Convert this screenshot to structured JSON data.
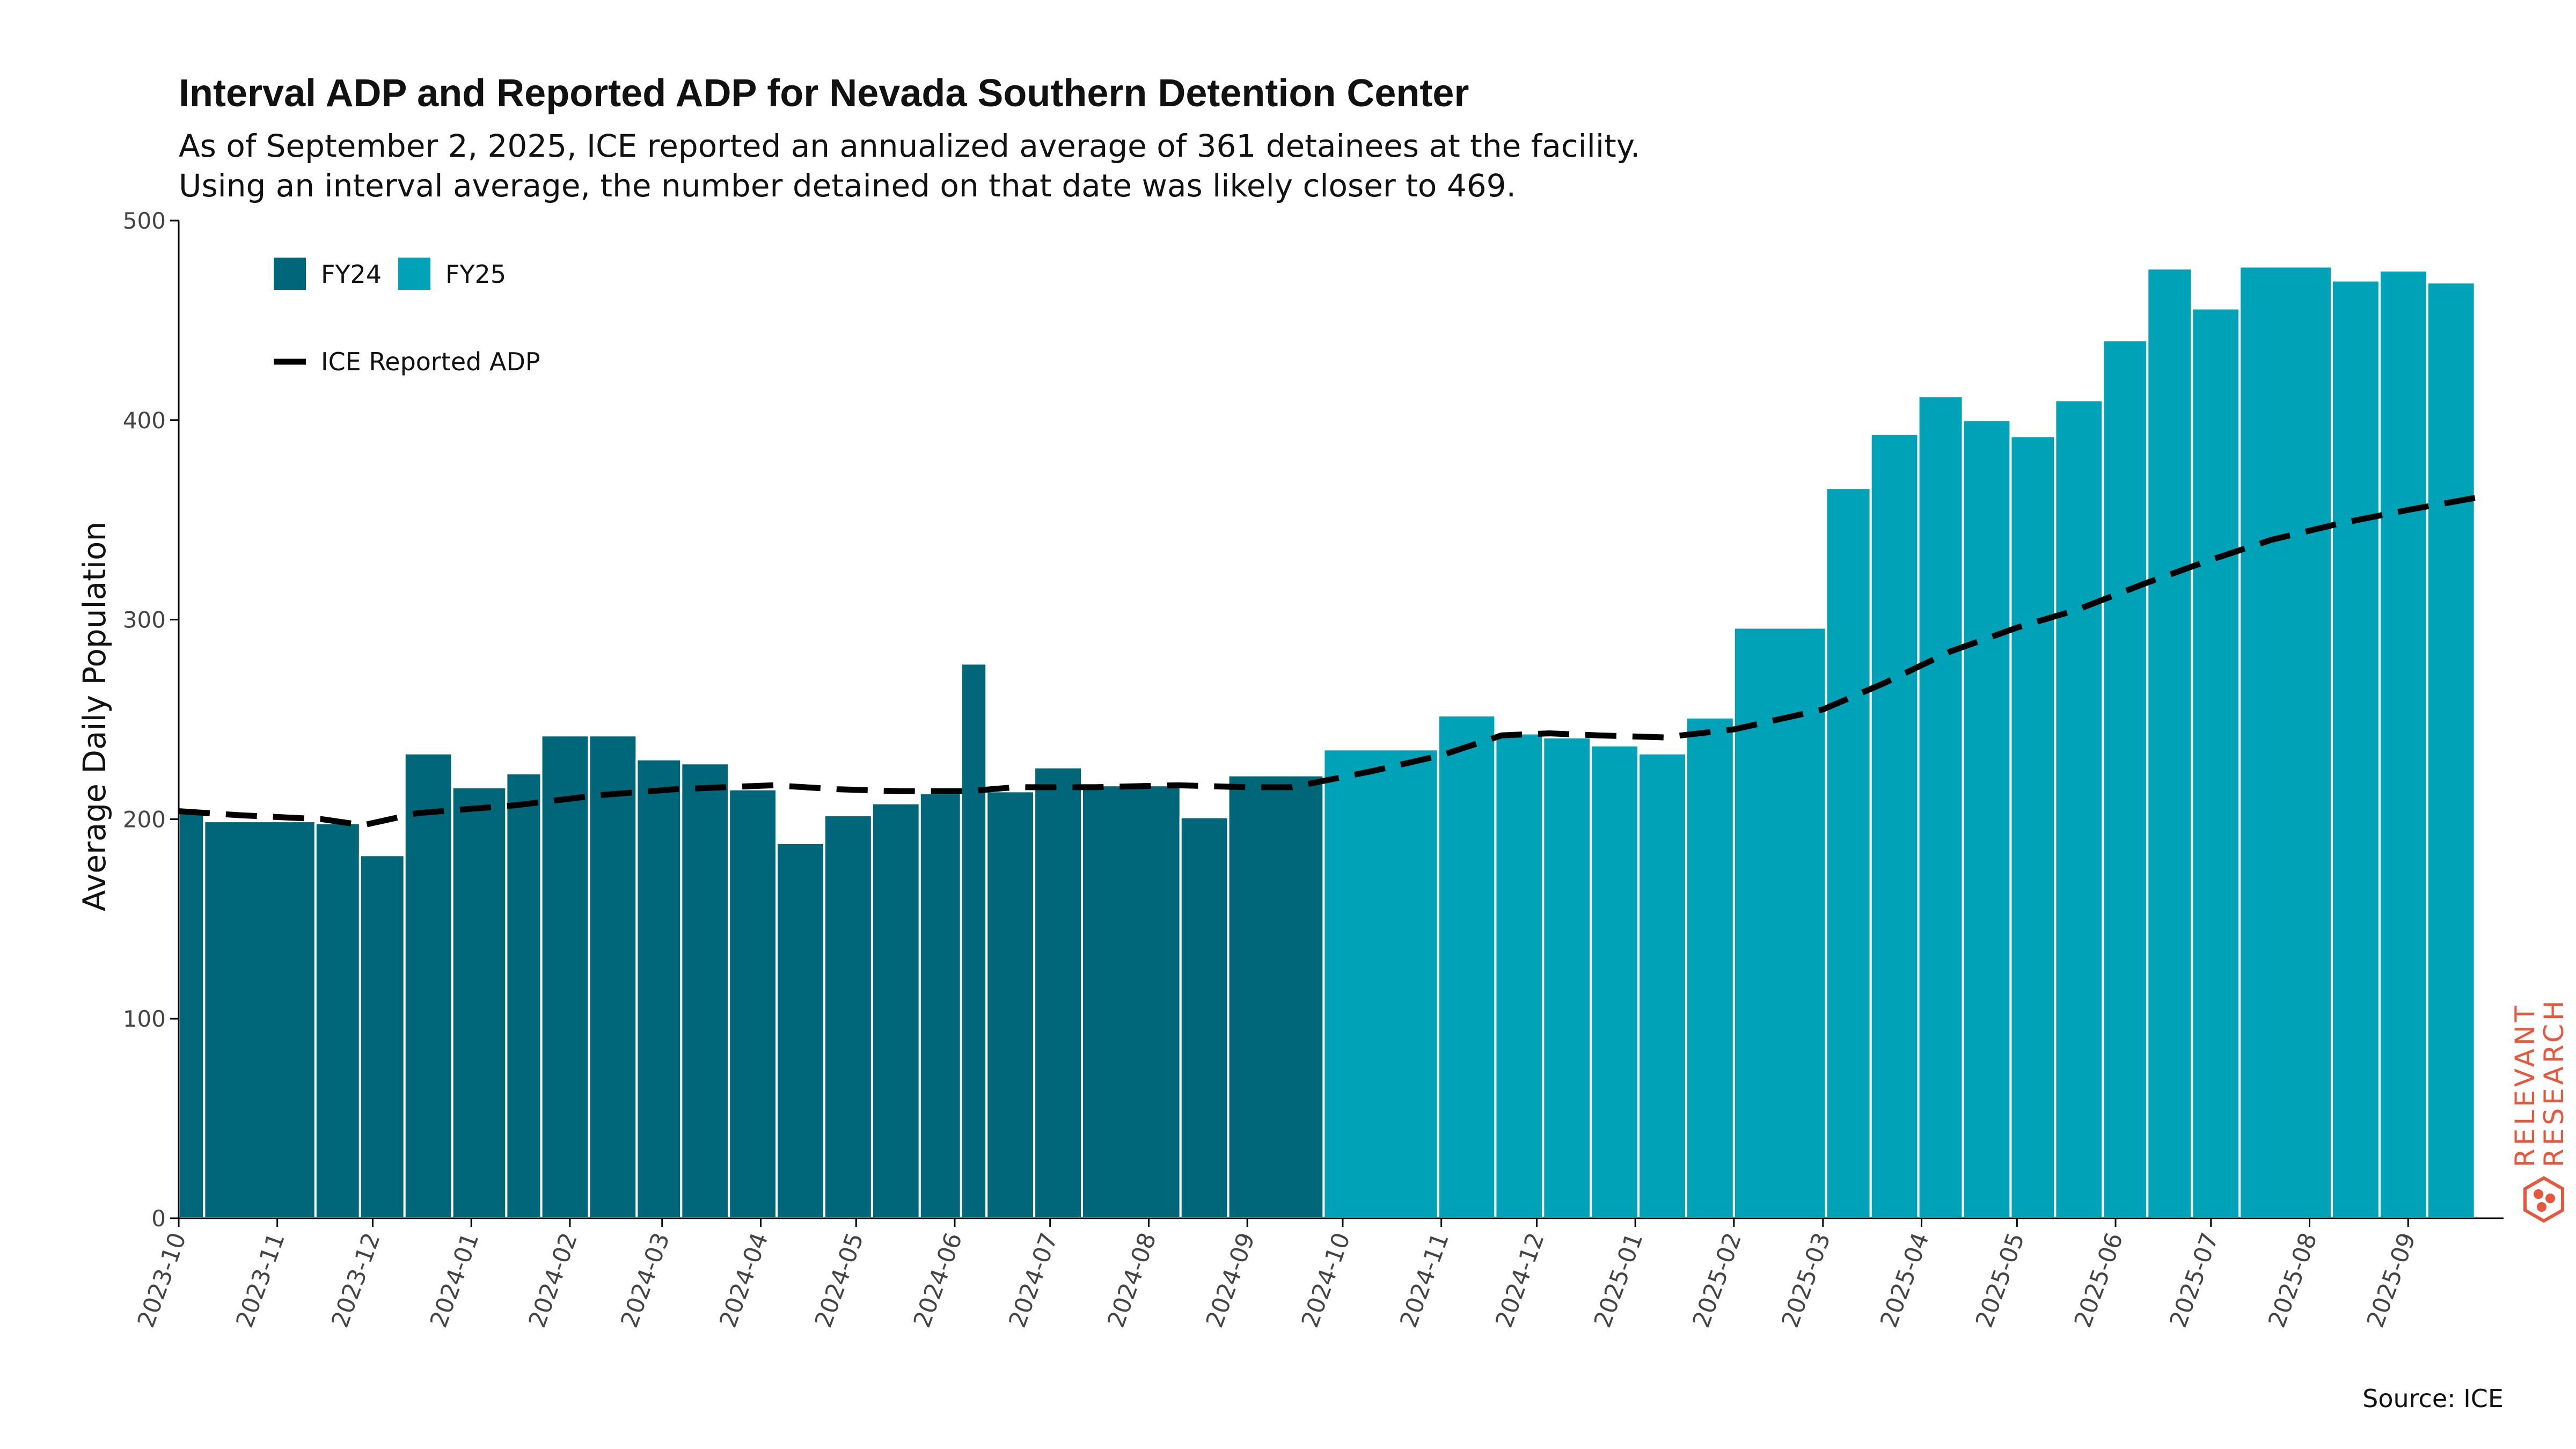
{
  "colors": {
    "fy24": "#00667a",
    "fy25": "#00a2b8",
    "line": "#000000",
    "brand": "#e8563b"
  },
  "chart_data": {
    "type": "bar",
    "title": "Interval ADP and Reported ADP for Nevada Southern Detention Center",
    "subtitle_lines": [
      "As of September 2, 2025, ICE reported an annualized average of 361 detainees at the facility.",
      "Using an interval average, the number detained on that date was likely closer to 469."
    ],
    "ylabel": "Average Daily Population",
    "xlabel": "",
    "ylim": [
      0,
      500
    ],
    "yticks": [
      0,
      100,
      200,
      300,
      400,
      500
    ],
    "xlim": [
      "2023-10-01",
      "2025-10-01"
    ],
    "xticks": [
      "2023-10",
      "2023-11",
      "2023-12",
      "2024-01",
      "2024-02",
      "2024-03",
      "2024-04",
      "2024-05",
      "2024-06",
      "2024-07",
      "2024-08",
      "2024-09",
      "2024-10",
      "2024-11",
      "2024-12",
      "2025-01",
      "2025-02",
      "2025-03",
      "2025-04",
      "2025-05",
      "2025-06",
      "2025-07",
      "2025-08",
      "2025-09"
    ],
    "legend": {
      "placement": "top-left",
      "items": [
        {
          "label": "FY24",
          "kind": "bar",
          "color": "fy24"
        },
        {
          "label": "FY25",
          "kind": "bar",
          "color": "fy25"
        },
        {
          "label": "ICE Reported ADP",
          "kind": "dashed-line",
          "color": "line"
        }
      ]
    },
    "bars": [
      {
        "start": "2023-10-01",
        "end": "2023-10-09",
        "value": 203,
        "fy": "FY24"
      },
      {
        "start": "2023-10-09",
        "end": "2023-11-13",
        "value": 199,
        "fy": "FY24"
      },
      {
        "start": "2023-11-13",
        "end": "2023-11-27",
        "value": 198,
        "fy": "FY24"
      },
      {
        "start": "2023-11-27",
        "end": "2023-12-11",
        "value": 182,
        "fy": "FY24"
      },
      {
        "start": "2023-12-11",
        "end": "2023-12-26",
        "value": 233,
        "fy": "FY24"
      },
      {
        "start": "2023-12-26",
        "end": "2024-01-12",
        "value": 216,
        "fy": "FY24"
      },
      {
        "start": "2024-01-12",
        "end": "2024-01-23",
        "value": 223,
        "fy": "FY24"
      },
      {
        "start": "2024-01-23",
        "end": "2024-02-07",
        "value": 242,
        "fy": "FY24"
      },
      {
        "start": "2024-02-07",
        "end": "2024-02-22",
        "value": 242,
        "fy": "FY24"
      },
      {
        "start": "2024-02-22",
        "end": "2024-03-07",
        "value": 230,
        "fy": "FY24"
      },
      {
        "start": "2024-03-07",
        "end": "2024-03-22",
        "value": 228,
        "fy": "FY24"
      },
      {
        "start": "2024-03-22",
        "end": "2024-04-06",
        "value": 215,
        "fy": "FY24"
      },
      {
        "start": "2024-04-06",
        "end": "2024-04-21",
        "value": 188,
        "fy": "FY24"
      },
      {
        "start": "2024-04-21",
        "end": "2024-05-06",
        "value": 202,
        "fy": "FY24"
      },
      {
        "start": "2024-05-06",
        "end": "2024-05-21",
        "value": 208,
        "fy": "FY24"
      },
      {
        "start": "2024-05-21",
        "end": "2024-06-03",
        "value": 213,
        "fy": "FY24"
      },
      {
        "start": "2024-06-03",
        "end": "2024-06-11",
        "value": 278,
        "fy": "FY24"
      },
      {
        "start": "2024-06-11",
        "end": "2024-06-26",
        "value": 214,
        "fy": "FY24"
      },
      {
        "start": "2024-06-26",
        "end": "2024-07-11",
        "value": 226,
        "fy": "FY24"
      },
      {
        "start": "2024-07-11",
        "end": "2024-08-11",
        "value": 217,
        "fy": "FY24"
      },
      {
        "start": "2024-08-11",
        "end": "2024-08-26",
        "value": 201,
        "fy": "FY24"
      },
      {
        "start": "2024-08-26",
        "end": "2024-09-25",
        "value": 222,
        "fy": "FY24"
      },
      {
        "start": "2024-09-25",
        "end": "2024-10-31",
        "value": 235,
        "fy": "FY25"
      },
      {
        "start": "2024-10-31",
        "end": "2024-11-18",
        "value": 252,
        "fy": "FY25"
      },
      {
        "start": "2024-11-18",
        "end": "2024-12-03",
        "value": 243,
        "fy": "FY25"
      },
      {
        "start": "2024-12-03",
        "end": "2024-12-18",
        "value": 241,
        "fy": "FY25"
      },
      {
        "start": "2024-12-18",
        "end": "2025-01-02",
        "value": 237,
        "fy": "FY25"
      },
      {
        "start": "2025-01-02",
        "end": "2025-01-17",
        "value": 233,
        "fy": "FY25"
      },
      {
        "start": "2025-01-17",
        "end": "2025-02-01",
        "value": 251,
        "fy": "FY25"
      },
      {
        "start": "2025-02-01",
        "end": "2025-03-02",
        "value": 296,
        "fy": "FY25"
      },
      {
        "start": "2025-03-02",
        "end": "2025-03-16",
        "value": 366,
        "fy": "FY25"
      },
      {
        "start": "2025-03-16",
        "end": "2025-03-31",
        "value": 393,
        "fy": "FY25"
      },
      {
        "start": "2025-03-31",
        "end": "2025-04-14",
        "value": 412,
        "fy": "FY25"
      },
      {
        "start": "2025-04-14",
        "end": "2025-04-29",
        "value": 400,
        "fy": "FY25"
      },
      {
        "start": "2025-04-29",
        "end": "2025-05-13",
        "value": 392,
        "fy": "FY25"
      },
      {
        "start": "2025-05-13",
        "end": "2025-05-28",
        "value": 410,
        "fy": "FY25"
      },
      {
        "start": "2025-05-28",
        "end": "2025-06-11",
        "value": 440,
        "fy": "FY25"
      },
      {
        "start": "2025-06-11",
        "end": "2025-06-25",
        "value": 476,
        "fy": "FY25"
      },
      {
        "start": "2025-06-25",
        "end": "2025-07-10",
        "value": 456,
        "fy": "FY25"
      },
      {
        "start": "2025-07-10",
        "end": "2025-08-08",
        "value": 477,
        "fy": "FY25"
      },
      {
        "start": "2025-08-08",
        "end": "2025-08-23",
        "value": 470,
        "fy": "FY25"
      },
      {
        "start": "2025-08-23",
        "end": "2025-09-07",
        "value": 475,
        "fy": "FY25"
      },
      {
        "start": "2025-09-07",
        "end": "2025-09-22",
        "value": 469,
        "fy": "FY25"
      }
    ],
    "series": [
      {
        "name": "ICE Reported ADP",
        "style": "dashed",
        "points": [
          [
            "2023-10-01",
            204
          ],
          [
            "2023-10-20",
            202
          ],
          [
            "2023-11-15",
            200
          ],
          [
            "2023-11-28",
            197
          ],
          [
            "2023-12-15",
            203
          ],
          [
            "2024-01-15",
            207
          ],
          [
            "2024-02-10",
            212
          ],
          [
            "2024-03-05",
            215
          ],
          [
            "2024-04-05",
            217
          ],
          [
            "2024-04-25",
            215
          ],
          [
            "2024-05-15",
            214
          ],
          [
            "2024-06-05",
            214
          ],
          [
            "2024-06-20",
            216
          ],
          [
            "2024-07-15",
            216
          ],
          [
            "2024-08-10",
            217
          ],
          [
            "2024-09-01",
            216
          ],
          [
            "2024-09-15",
            216
          ],
          [
            "2024-10-10",
            224
          ],
          [
            "2024-11-01",
            232
          ],
          [
            "2024-11-20",
            242
          ],
          [
            "2024-12-05",
            243
          ],
          [
            "2024-12-20",
            242
          ],
          [
            "2025-01-10",
            241
          ],
          [
            "2025-02-01",
            245
          ],
          [
            "2025-03-01",
            255
          ],
          [
            "2025-03-20",
            268
          ],
          [
            "2025-04-10",
            284
          ],
          [
            "2025-05-01",
            296
          ],
          [
            "2025-05-20",
            305
          ],
          [
            "2025-06-10",
            318
          ],
          [
            "2025-07-01",
            330
          ],
          [
            "2025-07-20",
            340
          ],
          [
            "2025-08-10",
            348
          ],
          [
            "2025-09-01",
            355
          ],
          [
            "2025-09-22",
            361
          ]
        ]
      }
    ]
  },
  "source": "Source: ICE",
  "brand": {
    "line1": "RELEVANT",
    "line2": "RESEARCH"
  }
}
